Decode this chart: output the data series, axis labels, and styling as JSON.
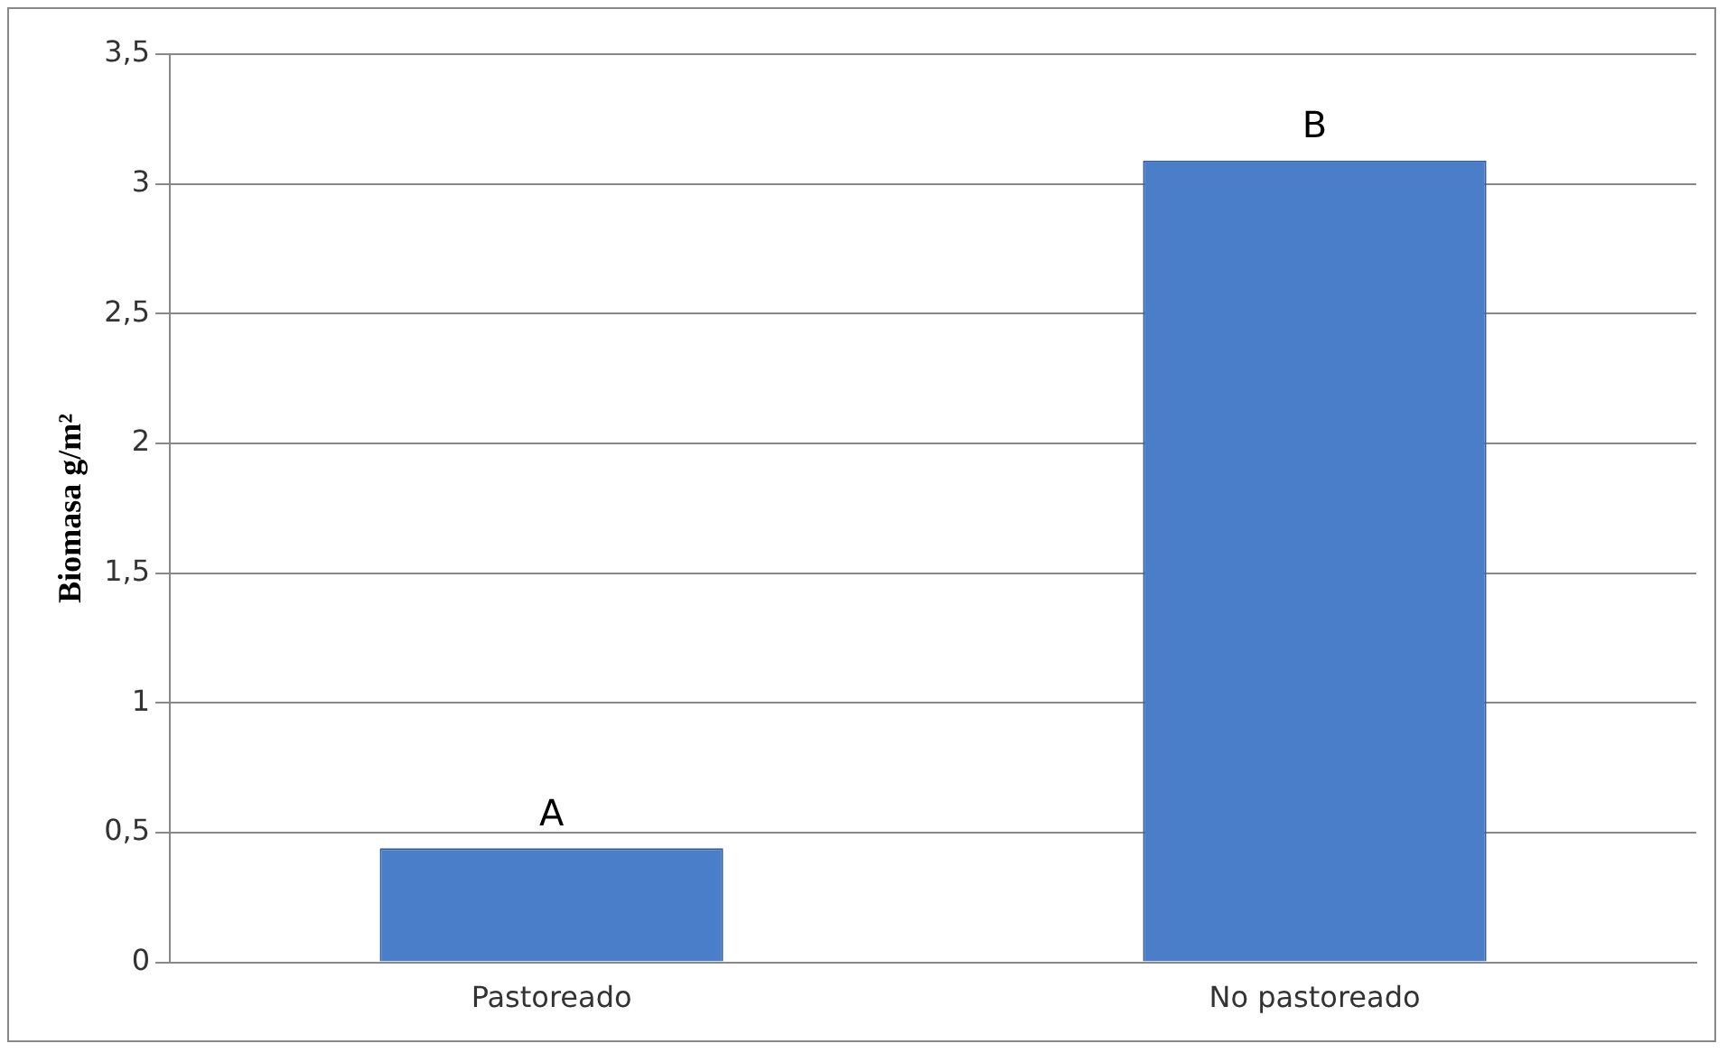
{
  "chart_data": {
    "type": "bar",
    "ylabel": "Biomasa g/m²",
    "categories": [
      "Pastoreado",
      "No pastoreado"
    ],
    "values": [
      0.44,
      3.09
    ],
    "color": "#4a7ec8",
    "ylim": [
      0,
      3.5
    ],
    "yticks": [
      0,
      {
        "value": 0.5,
        "label": "0,5"
      },
      1,
      {
        "value": 1.5,
        "label": "1,5"
      },
      2,
      {
        "value": 2.5,
        "label": "2,5"
      },
      3,
      {
        "value": 3.5,
        "label": "3,5"
      }
    ],
    "grid": "y",
    "annotations": [
      {
        "text": "A",
        "x": "Pastoreado",
        "y": 0.44
      },
      {
        "text": "B",
        "x": "No pastoreado",
        "y": 3.09
      }
    ]
  }
}
